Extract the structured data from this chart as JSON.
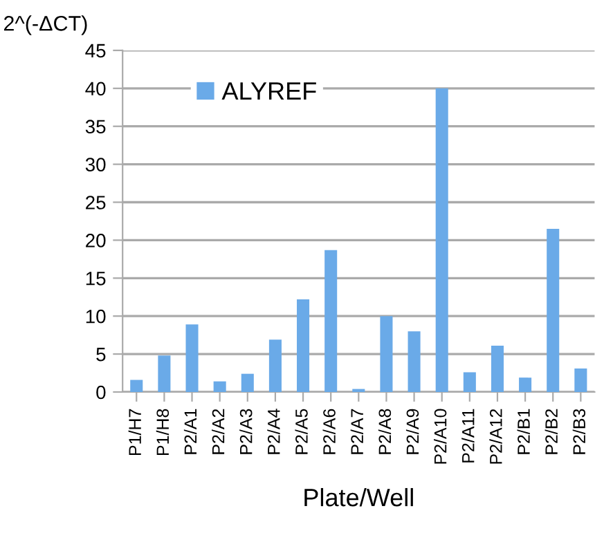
{
  "chart_data": {
    "type": "bar",
    "ylabel": "2^(-ΔCT)",
    "xlabel": "Plate/Well",
    "categories": [
      "P1/H7",
      "P1/H8",
      "P2/A1",
      "P2/A2",
      "P2/A3",
      "P2/A4",
      "P2/A5",
      "P2/A6",
      "P2/A7",
      "P2/A8",
      "P2/A9",
      "P2/A10",
      "P2/A11",
      "P2/A12",
      "P2/B1",
      "P2/B2",
      "P2/B3"
    ],
    "series": [
      {
        "name": "ALYREF",
        "color": "#6aaae8",
        "values": [
          1.6,
          4.8,
          8.9,
          1.4,
          2.4,
          6.9,
          12.2,
          18.7,
          0.4,
          10.0,
          8.0,
          40.0,
          2.6,
          6.1,
          1.9,
          21.5,
          3.1
        ]
      }
    ],
    "ylim": [
      0,
      45
    ],
    "yticks": [
      0,
      5,
      10,
      15,
      20,
      25,
      30,
      35,
      40,
      45
    ],
    "grid": "y",
    "legend": "top left"
  }
}
